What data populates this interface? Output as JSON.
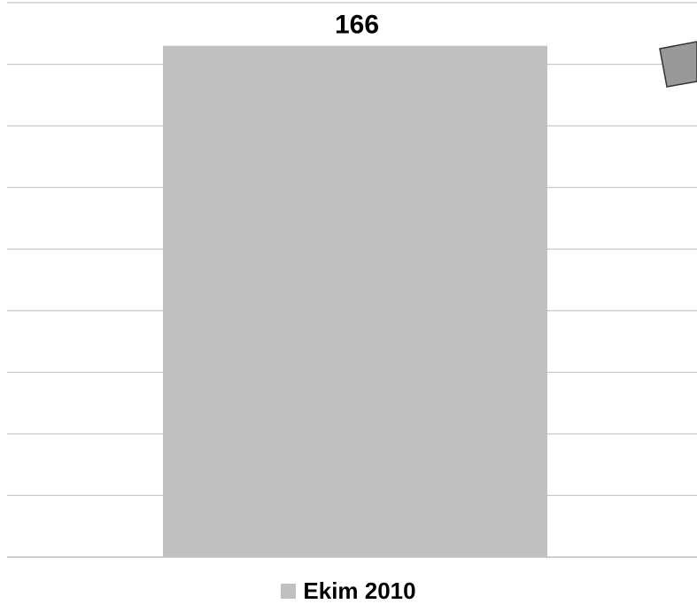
{
  "chart_data": {
    "type": "bar",
    "categories": [
      ""
    ],
    "series": [
      {
        "name": "Ekim 2010",
        "values": [
          166
        ]
      }
    ],
    "ylim": [
      0,
      180
    ],
    "y_gridline_step": 20,
    "grid": true,
    "legend_position": "bottom",
    "data_labels": [
      "166"
    ],
    "colors": {
      "bar": "#c0c0c0",
      "gridline": "#c8c8c8",
      "label": "#000000"
    }
  },
  "decoration": {
    "shape": "tilted-square",
    "color": "#999999",
    "border": "#333333"
  }
}
